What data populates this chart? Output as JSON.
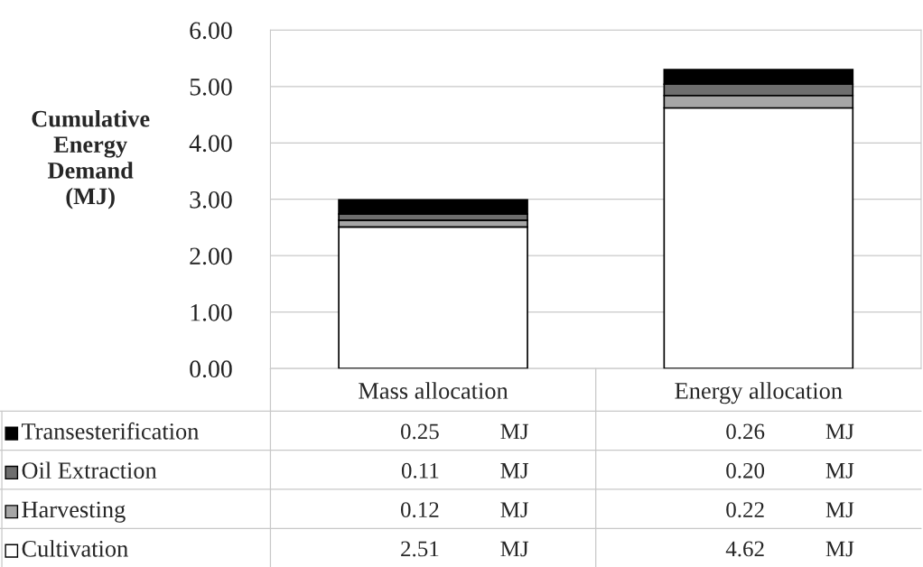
{
  "chart_data": {
    "type": "bar",
    "stacked": true,
    "ylabel": "Cumulative\nEnergy\nDemand\n(MJ)",
    "categories": [
      "Mass allocation",
      "Energy allocation"
    ],
    "series": [
      {
        "name": "Cultivation",
        "color": "#ffffff",
        "values": [
          2.51,
          4.62
        ],
        "value_labels": [
          "2.51 MJ",
          "4.62 MJ"
        ]
      },
      {
        "name": "Harvesting",
        "color": "#a6a6a6",
        "values": [
          0.12,
          0.22
        ],
        "value_labels": [
          "0.12 MJ",
          "0.22 MJ"
        ]
      },
      {
        "name": "Oil Extraction",
        "color": "#6e6e6e",
        "values": [
          0.11,
          0.2
        ],
        "value_labels": [
          "0.11 MJ",
          "0.20 MJ"
        ]
      },
      {
        "name": "Transesterification",
        "color": "#000000",
        "values": [
          0.25,
          0.26
        ],
        "value_labels": [
          "0.25 MJ",
          "0.26 MJ"
        ]
      }
    ],
    "ylim": [
      0,
      6
    ],
    "yticks": [
      {
        "value": 0,
        "label": "0.00"
      },
      {
        "value": 1,
        "label": "1.00"
      },
      {
        "value": 2,
        "label": "2.00"
      },
      {
        "value": 3,
        "label": "3.00"
      },
      {
        "value": 4,
        "label": "4.00"
      },
      {
        "value": 5,
        "label": "5.00"
      },
      {
        "value": 6,
        "label": "6.00"
      }
    ],
    "grid": "y",
    "legend": "bottom left"
  }
}
